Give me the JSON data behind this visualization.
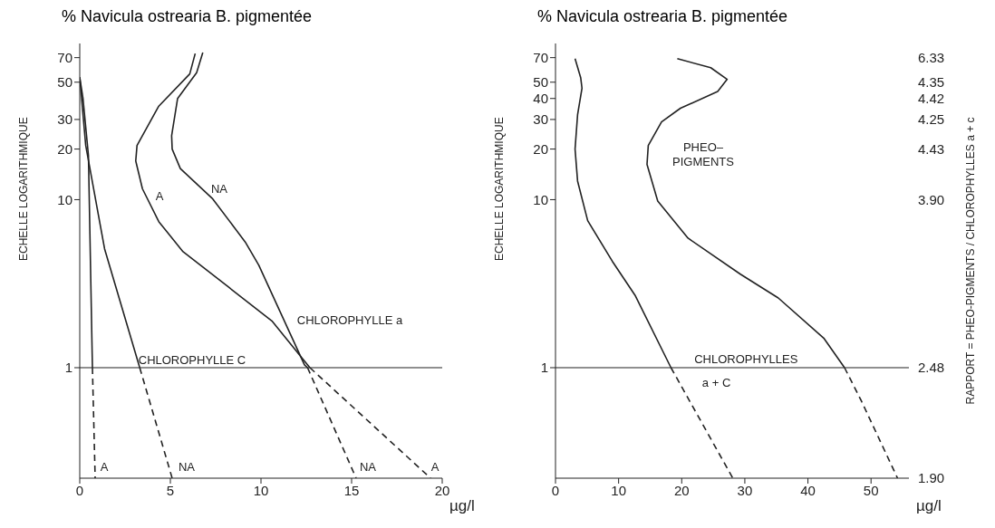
{
  "chart_data": [
    {
      "type": "line",
      "title": "% Navicula ostrearia B. pigmentée",
      "ylabel": "ECHELLE   LOGARITHMIQUE",
      "xlabel": "µg/l",
      "log": "y",
      "marker": "none",
      "xlim": [
        0,
        20
      ],
      "xticks": [
        0,
        5,
        10,
        15,
        20
      ],
      "ylim": [
        0.22,
        85
      ],
      "yticks": [
        1,
        10,
        20,
        30,
        50,
        70
      ],
      "ref_lines": [
        {
          "axis": "y",
          "value": 1,
          "color": "#222222"
        }
      ],
      "series": [
        {
          "color": "#222222",
          "x": [
            6.37,
            6.07,
            4.36,
            3.16,
            3.09,
            3.46,
            4.36,
            5.7,
            8.24,
            10.6,
            12.27,
            12.7
          ],
          "values": [
            74,
            56,
            36,
            21,
            17,
            11.6,
            7.4,
            4.9,
            3.0,
            1.9,
            1.14,
            1
          ]
        },
        {
          "color": "#222222",
          "line_style": "dashed",
          "x": [
            12.7,
            19.36
          ],
          "values": [
            1,
            0.22
          ]
        },
        {
          "color": "#222222",
          "x": [
            6.79,
            6.45,
            5.4,
            5.07,
            5.1,
            5.55,
            7.34,
            9.13,
            9.88,
            12.4,
            12.57
          ],
          "values": [
            75,
            57,
            40,
            24,
            20,
            15.3,
            10.1,
            5.6,
            4.07,
            1.04,
            1
          ]
        },
        {
          "color": "#222222",
          "line_style": "dashed",
          "x": [
            12.57,
            15.25
          ],
          "values": [
            1,
            0.22
          ]
        },
        {
          "color": "#222222",
          "x": [
            0,
            0.18,
            0.48,
            0.7
          ],
          "values": [
            53.5,
            40,
            18.3,
            1
          ]
        },
        {
          "color": "#222222",
          "line_style": "dashed",
          "x": [
            0.7,
            0.85
          ],
          "values": [
            1,
            0.22
          ]
        },
        {
          "color": "#222222",
          "x": [
            0,
            0.33,
            1.37,
            3.31
          ],
          "values": [
            53.5,
            21,
            5.1,
            1
          ]
        },
        {
          "color": "#222222",
          "line_style": "dashed",
          "x": [
            3.31,
            5.1
          ],
          "values": [
            1,
            0.22
          ]
        }
      ],
      "annotations": [
        "A",
        "NA",
        "CHLOROPHYLLE a",
        "CHLOROPHYLLE C",
        "A",
        "NA",
        "NA",
        "A"
      ]
    },
    {
      "type": "line",
      "title": "% Navicula ostrearia B. pigmentée",
      "ylabel": "ECHELLE   LOGARITHMIQUE",
      "xlabel": "µg/l",
      "y2label": "RAPPORT = PHEO-PIGMENTS / CHLOROPHYLLES a + c",
      "log": "y",
      "marker": "none",
      "xlim": [
        0,
        56
      ],
      "xticks": [
        0,
        10,
        20,
        30,
        40,
        50
      ],
      "ylim": [
        0.22,
        85
      ],
      "yticks": [
        1,
        10,
        20,
        30,
        40,
        50,
        70
      ],
      "ref_lines": [
        {
          "axis": "y",
          "value": 1,
          "color": "#222222"
        }
      ],
      "series": [
        {
          "color": "#222222",
          "x": [
            3.1,
            4.0,
            4.2,
            3.5,
            3.1,
            3.5,
            5.1,
            9.0,
            12.6,
            18.3
          ],
          "values": [
            69,
            53,
            46,
            32,
            20,
            12.9,
            7.5,
            4.3,
            2.7,
            1
          ]
        },
        {
          "color": "#222222",
          "line_style": "dashed",
          "x": [
            18.3,
            28.1
          ],
          "values": [
            1,
            0.22
          ]
        },
        {
          "color": "#222222",
          "x": [
            19.3,
            24.6,
            27.2,
            25.7,
            19.8,
            16.8,
            14.7,
            14.5,
            16.2,
            21.0,
            29.3,
            35.3,
            42.5,
            45.8
          ],
          "values": [
            69,
            61,
            52,
            44,
            35,
            29,
            21,
            16.2,
            9.8,
            5.9,
            3.6,
            2.6,
            1.5,
            1
          ]
        },
        {
          "color": "#222222",
          "line_style": "dashed",
          "x": [
            45.8,
            48.5,
            54.2
          ],
          "values": [
            1,
            0.63,
            0.22
          ]
        }
      ],
      "annotations": [
        "PHEO–\nPIGMENTS",
        "CHLOROPHYLLES",
        "a + C",
        "6.33",
        "4.35",
        "4.42",
        "4.25",
        "4.43",
        "3.90",
        "2.48",
        "1.90"
      ]
    }
  ]
}
